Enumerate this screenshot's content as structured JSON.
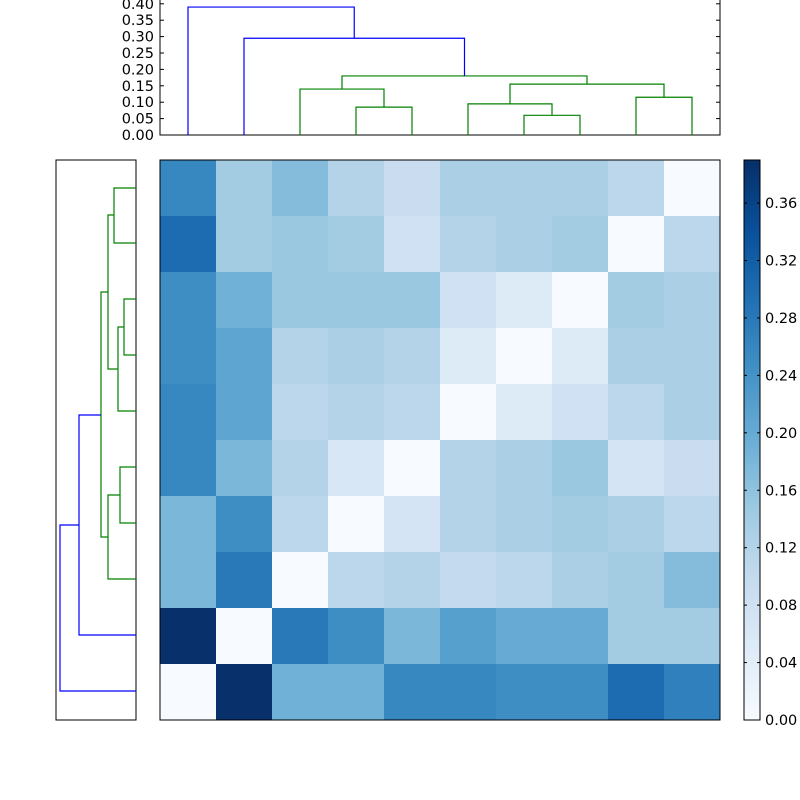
{
  "chart_data": [
    {
      "type": "dendrogram",
      "orientation": "top",
      "yticks": [
        "0.00",
        "0.05",
        "0.10",
        "0.15",
        "0.20",
        "0.25",
        "0.30",
        "0.35",
        "0.40"
      ],
      "ylim": [
        0,
        0.4
      ],
      "leaf_count": 10,
      "links": [
        {
          "leaves": [
            4,
            5
          ],
          "height": 0.085,
          "color": "#008000"
        },
        {
          "leaves": [
            3,
            "4-5"
          ],
          "height": 0.14,
          "color": "#008000"
        },
        {
          "leaves": [
            7,
            8
          ],
          "height": 0.06,
          "color": "#008000"
        },
        {
          "leaves": [
            6,
            "7-8"
          ],
          "height": 0.095,
          "color": "#008000"
        },
        {
          "leaves": [
            9,
            10
          ],
          "height": 0.115,
          "color": "#008000"
        },
        {
          "leaves": [
            "6-8",
            "9-10"
          ],
          "height": 0.155,
          "color": "#008000"
        },
        {
          "leaves": [
            "3-5",
            "6-10"
          ],
          "height": 0.18,
          "color": "#008000"
        },
        {
          "leaves": [
            2,
            "3-10"
          ],
          "height": 0.295,
          "color": "#0000ff"
        },
        {
          "leaves": [
            1,
            "2-10"
          ],
          "height": 0.39,
          "color": "#0000ff"
        }
      ]
    },
    {
      "type": "dendrogram",
      "orientation": "left",
      "links": [
        {
          "color": "#008000"
        },
        {
          "color": "#008000"
        },
        {
          "color": "#008000"
        },
        {
          "color": "#008000"
        },
        {
          "color": "#008000"
        },
        {
          "color": "#008000"
        },
        {
          "color": "#008000"
        },
        {
          "color": "#0000ff"
        },
        {
          "color": "#0000ff"
        }
      ]
    },
    {
      "type": "heatmap",
      "colormap": "Blues",
      "vmin": 0,
      "vmax": 0.39,
      "values": [
        [
          0.26,
          0.14,
          0.17,
          0.12,
          0.09,
          0.13,
          0.13,
          0.13,
          0.11,
          0.0
        ],
        [
          0.3,
          0.14,
          0.15,
          0.14,
          0.08,
          0.12,
          0.13,
          0.14,
          0.0,
          0.11
        ],
        [
          0.25,
          0.19,
          0.15,
          0.15,
          0.15,
          0.08,
          0.05,
          0.0,
          0.14,
          0.13
        ],
        [
          0.25,
          0.21,
          0.12,
          0.13,
          0.12,
          0.05,
          0.0,
          0.05,
          0.13,
          0.13
        ],
        [
          0.26,
          0.21,
          0.11,
          0.12,
          0.11,
          0.0,
          0.05,
          0.08,
          0.11,
          0.13
        ],
        [
          0.26,
          0.18,
          0.12,
          0.06,
          0.0,
          0.12,
          0.13,
          0.15,
          0.07,
          0.09
        ],
        [
          0.18,
          0.25,
          0.11,
          0.0,
          0.07,
          0.12,
          0.13,
          0.14,
          0.13,
          0.11
        ],
        [
          0.18,
          0.28,
          0.0,
          0.11,
          0.12,
          0.1,
          0.11,
          0.13,
          0.14,
          0.17
        ],
        [
          0.39,
          0.0,
          0.28,
          0.25,
          0.18,
          0.22,
          0.2,
          0.2,
          0.14,
          0.14
        ],
        [
          0.0,
          0.39,
          0.19,
          0.19,
          0.26,
          0.26,
          0.25,
          0.25,
          0.3,
          0.27
        ]
      ]
    },
    {
      "type": "colorbar",
      "ticks": [
        "0.00",
        "0.04",
        "0.08",
        "0.12",
        "0.16",
        "0.20",
        "0.24",
        "0.28",
        "0.32",
        "0.36"
      ],
      "tick_values": [
        0.0,
        0.04,
        0.08,
        0.12,
        0.16,
        0.2,
        0.24,
        0.28,
        0.32,
        0.36
      ],
      "range": [
        0,
        0.39
      ]
    }
  ]
}
